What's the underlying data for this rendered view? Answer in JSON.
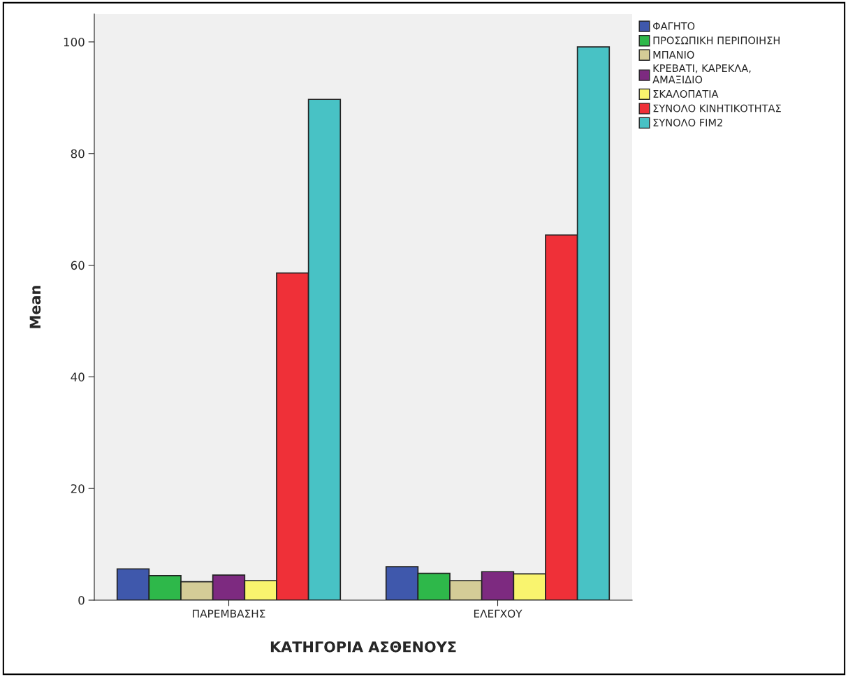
{
  "chart_data": {
    "type": "bar",
    "xlabel": "ΚΑΤΗΓΟΡΙΑ ΑΣΘΕΝΟΥΣ",
    "ylabel": "Mean",
    "categories": [
      "ΠΑΡΕΜΒΑΣΗΣ",
      "ΕΛΕΓΧΟΥ"
    ],
    "series": [
      {
        "name": "ΦΑΓΗΤΟ",
        "color": "#3f58ac",
        "values": [
          5.6,
          6.0
        ]
      },
      {
        "name": "ΠΡΟΣΩΠΙΚΗ ΠΕΡΙΠΟΙΗΣΗ",
        "color": "#2eb84a",
        "values": [
          4.4,
          4.8
        ]
      },
      {
        "name": "ΜΠΑΝΙΟ",
        "color": "#d4cc97",
        "values": [
          3.3,
          3.5
        ]
      },
      {
        "name": "ΚΡΕΒΑΤΙ, ΚΑΡΕΚΛΑ,\nΑΜΑΞΙΔΙΟ",
        "color": "#7d2a80",
        "values": [
          4.5,
          5.1
        ]
      },
      {
        "name": "ΣΚΑΛΟΠΑΤΙΑ",
        "color": "#f9f46e",
        "values": [
          3.5,
          4.7
        ]
      },
      {
        "name": "ΣΥΝΟΛΟ ΚΙΝΗΤΙΚΟΤΗΤΑΣ",
        "color": "#ef3038",
        "values": [
          58.6,
          65.4
        ]
      },
      {
        "name": "ΣΥΝΟΛΟ FIM2",
        "color": "#48c2c5",
        "values": [
          89.7,
          99.1
        ]
      }
    ],
    "ylim": [
      0,
      105
    ],
    "yticks": [
      0,
      20,
      40,
      60,
      80,
      100
    ],
    "grid": false,
    "legend": "top right"
  }
}
